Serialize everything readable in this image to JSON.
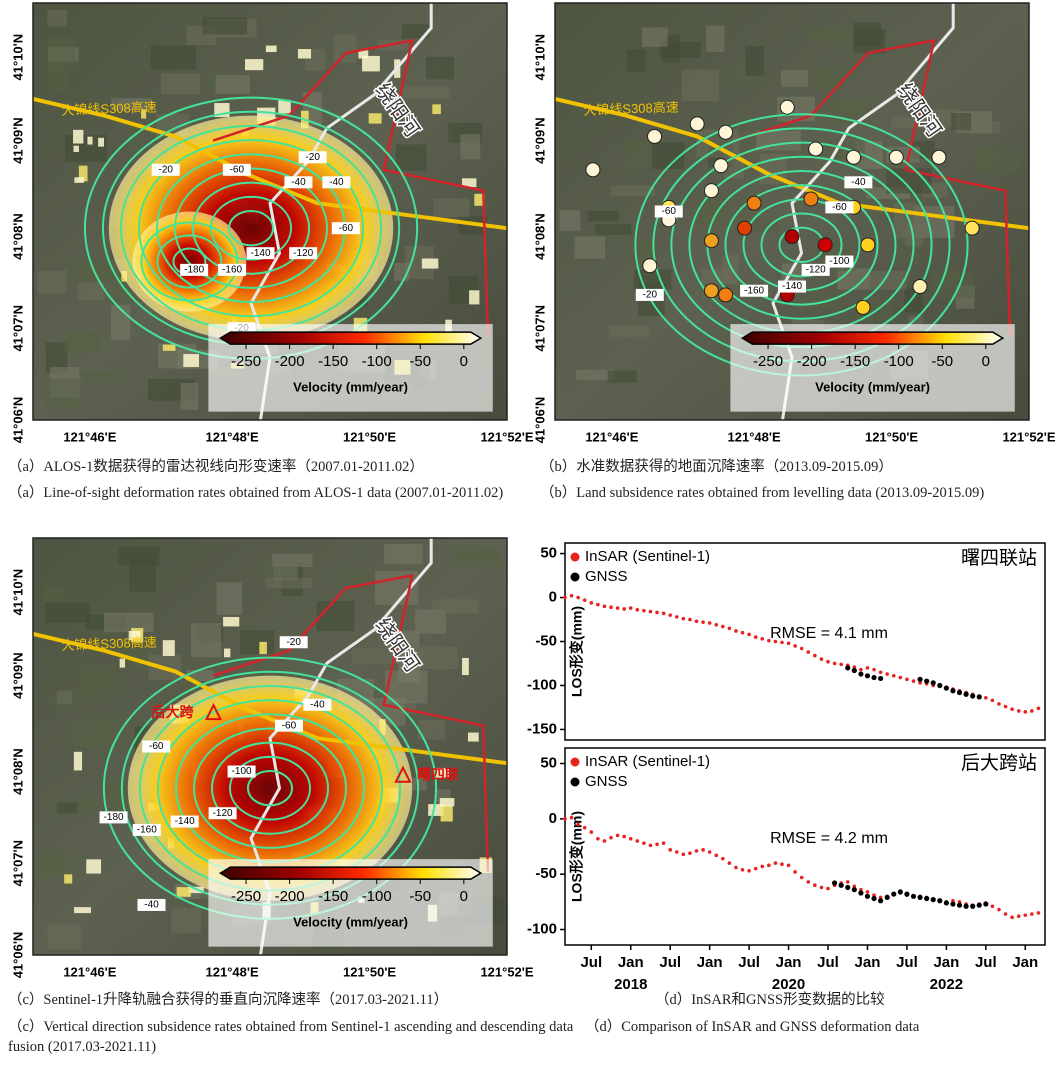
{
  "maps": [
    {
      "lat_ticks": [
        "41°10'N",
        "41°09'N",
        "41°08'N",
        "41°07'N",
        "41°06'N"
      ],
      "lon_ticks": [
        "121°46'E",
        "121°48'E",
        "121°50'E",
        "121°52'E"
      ],
      "places": [
        "大锦线S308高速",
        "绕阳河"
      ],
      "contour_labels": [
        -20,
        -60,
        -40,
        -20,
        -40,
        -140,
        -120,
        -60,
        -180,
        -160,
        -20
      ],
      "colorbar": {
        "ticks": [
          -250,
          -200,
          -150,
          -100,
          -50,
          0
        ],
        "lim": [
          -268,
          8
        ],
        "label": "Velocity (mm/year)"
      },
      "caption_zh": "（a）ALOS-1数据获得的雷达视线向形变速率（2007.01-2011.02）",
      "caption_en": "（a）Line-of-sight deformation rates obtained from ALOS-1 data (2007.01-2011.02)"
    },
    {
      "lat_ticks": [
        "41°10'N",
        "41°09'N",
        "41°08'N",
        "41°07'N",
        "41°06'N"
      ],
      "lon_ticks": [
        "121°46'E",
        "121°48'E",
        "121°50'E",
        "121°52'E"
      ],
      "places": [
        "大锦线S308高速",
        "绕阳河"
      ],
      "contour_labels": [
        -40,
        -60,
        -60,
        -100,
        -120,
        -140,
        -160,
        -20
      ],
      "colorbar": {
        "ticks": [
          -250,
          -200,
          -150,
          -100,
          -50,
          0
        ],
        "lim": [
          -268,
          8
        ],
        "label": "Velocity (mm/year)"
      },
      "caption_zh": "（b）水准数据获得的地面沉降速率（2013.09-2015.09）",
      "caption_en": "（b）Land subsidence rates obtained from levelling data (2013.09-2015.09)"
    },
    {
      "lat_ticks": [
        "41°10'N",
        "41°09'N",
        "41°08'N",
        "41°07'N",
        "41°06'N"
      ],
      "lon_ticks": [
        "121°46'E",
        "121°48'E",
        "121°50'E",
        "121°52'E"
      ],
      "places": [
        "大锦线S308高速",
        "绕阳河",
        "后大跨",
        "曙四联"
      ],
      "contour_labels": [
        -20,
        -40,
        -60,
        -60,
        -100,
        -120,
        -140,
        -160,
        -180,
        -40
      ],
      "colorbar": {
        "ticks": [
          -250,
          -200,
          -150,
          -100,
          -50,
          0
        ],
        "lim": [
          -268,
          8
        ],
        "label": "Velocity (mm/year)"
      },
      "caption_zh": "（c）Sentinel-1升降轨融合获得的垂直向沉降速率（2017.03-2021.11）",
      "caption_en": "（c）Vertical direction subsidence rates obtained from Sentinel-1 ascending and descending data fusion (2017.03-2021.11)"
    }
  ],
  "panel_d": {
    "caption_zh": "（d）InSAR和GNSS形变数据的比较",
    "caption_en": "（d）Comparison of InSAR and GNSS deformation data"
  },
  "chart_data": [
    {
      "type": "line",
      "title": "曙四联站",
      "annotation": "RMSE = 4.1 mm",
      "y_label": "LOS形变(mm)",
      "x": [
        "2017-03",
        "2017-04",
        "2017-05",
        "2017-06",
        "2017-07",
        "2017-08",
        "2017-09",
        "2017-10",
        "2017-11",
        "2017-12",
        "2018-01",
        "2018-02",
        "2018-03",
        "2018-04",
        "2018-05",
        "2018-06",
        "2018-07",
        "2018-08",
        "2018-09",
        "2018-10",
        "2018-11",
        "2018-12",
        "2019-01",
        "2019-02",
        "2019-03",
        "2019-04",
        "2019-05",
        "2019-06",
        "2019-07",
        "2019-08",
        "2019-09",
        "2019-10",
        "2019-11",
        "2019-12",
        "2020-01",
        "2020-02",
        "2020-03",
        "2020-04",
        "2020-05",
        "2020-06",
        "2020-07",
        "2020-08",
        "2020-09",
        "2020-10",
        "2020-11",
        "2020-12",
        "2021-01",
        "2021-02",
        "2021-03",
        "2021-04",
        "2021-05",
        "2021-06",
        "2021-07",
        "2021-08",
        "2021-09",
        "2021-10",
        "2021-11",
        "2021-12",
        "2022-01",
        "2022-02",
        "2022-03",
        "2022-04",
        "2022-05",
        "2022-06",
        "2022-07",
        "2022-08",
        "2022-09",
        "2022-10",
        "2022-11",
        "2022-12",
        "2023-01",
        "2023-02",
        "2023-03"
      ],
      "series": [
        {
          "name": "InSAR (Sentinel-1)",
          "color": "#e8231f",
          "values": [
            0,
            2,
            0,
            -3,
            -6,
            -8,
            -10,
            -11,
            -12,
            -13,
            -12,
            -14,
            -15,
            -16,
            -17,
            -18,
            -20,
            -22,
            -24,
            -25,
            -27,
            -28,
            -29,
            -31,
            -33,
            -35,
            -38,
            -40,
            -42,
            -45,
            -47,
            -49,
            -50,
            -51,
            -52,
            -55,
            -58,
            -62,
            -66,
            -70,
            -73,
            -75,
            -76,
            -77,
            -79,
            -82,
            -80,
            -82,
            -85,
            -87,
            -89,
            -91,
            -93,
            -95,
            -97,
            -98,
            -100,
            -101,
            -102,
            -104,
            -106,
            -108,
            -110,
            -112,
            -114,
            -117,
            -121,
            -124,
            -127,
            -129,
            -130,
            -129,
            -126
          ]
        },
        {
          "name": "GNSS",
          "color": "#000000",
          "values": [
            null,
            null,
            null,
            null,
            null,
            null,
            null,
            null,
            null,
            null,
            null,
            null,
            null,
            null,
            null,
            null,
            null,
            null,
            null,
            null,
            null,
            null,
            null,
            null,
            null,
            null,
            null,
            null,
            null,
            null,
            null,
            null,
            null,
            null,
            null,
            null,
            null,
            null,
            null,
            null,
            null,
            null,
            null,
            -80,
            -83,
            -87,
            -89,
            -91,
            -92,
            null,
            null,
            null,
            null,
            null,
            -93,
            -95,
            -97,
            -100,
            -103,
            -106,
            -108,
            -110,
            -112,
            -113,
            null,
            null,
            null,
            null,
            null,
            null,
            null,
            null,
            null
          ]
        }
      ],
      "xlim": [
        "2017-03",
        "2023-04"
      ],
      "ylim": [
        -162,
        62
      ],
      "yticks": [
        50,
        0,
        -50,
        -100,
        -150
      ]
    },
    {
      "type": "line",
      "title": "后大跨站",
      "annotation": "RMSE = 4.2 mm",
      "y_label": "LOS形变(mm)",
      "x": [
        "2017-03",
        "2017-04",
        "2017-05",
        "2017-06",
        "2017-07",
        "2017-08",
        "2017-09",
        "2017-10",
        "2017-11",
        "2017-12",
        "2018-01",
        "2018-02",
        "2018-03",
        "2018-04",
        "2018-05",
        "2018-06",
        "2018-07",
        "2018-08",
        "2018-09",
        "2018-10",
        "2018-11",
        "2018-12",
        "2019-01",
        "2019-02",
        "2019-03",
        "2019-04",
        "2019-05",
        "2019-06",
        "2019-07",
        "2019-08",
        "2019-09",
        "2019-10",
        "2019-11",
        "2019-12",
        "2020-01",
        "2020-02",
        "2020-03",
        "2020-04",
        "2020-05",
        "2020-06",
        "2020-07",
        "2020-08",
        "2020-09",
        "2020-10",
        "2020-11",
        "2020-12",
        "2021-01",
        "2021-02",
        "2021-03",
        "2021-04",
        "2021-05",
        "2021-06",
        "2021-07",
        "2021-08",
        "2021-09",
        "2021-10",
        "2021-11",
        "2021-12",
        "2022-01",
        "2022-02",
        "2022-03",
        "2022-04",
        "2022-05",
        "2022-06",
        "2022-07",
        "2022-08",
        "2022-09",
        "2022-10",
        "2022-11",
        "2022-12",
        "2023-01",
        "2023-02",
        "2023-03"
      ],
      "series": [
        {
          "name": "InSAR (Sentinel-1)",
          "color": "#e8231f",
          "values": [
            0,
            1,
            -5,
            -8,
            -12,
            -18,
            -20,
            -17,
            -15,
            -16,
            -18,
            -20,
            -22,
            -24,
            -23,
            -22,
            -28,
            -30,
            -32,
            -31,
            -29,
            -28,
            -30,
            -33,
            -36,
            -40,
            -44,
            -46,
            -47,
            -45,
            -43,
            -42,
            -40,
            -41,
            -42,
            -48,
            -53,
            -57,
            -60,
            -62,
            -63,
            -60,
            -58,
            -57,
            -61,
            -64,
            -66,
            -69,
            -71,
            -70,
            -68,
            -67,
            -69,
            -70,
            -70,
            -71,
            -73,
            -74,
            -75,
            -74,
            -75,
            -77,
            -78,
            -77,
            -76,
            -79,
            -82,
            -86,
            -89,
            -88,
            -87,
            -86,
            -85
          ]
        },
        {
          "name": "GNSS",
          "color": "#000000",
          "values": [
            null,
            null,
            null,
            null,
            null,
            null,
            null,
            null,
            null,
            null,
            null,
            null,
            null,
            null,
            null,
            null,
            null,
            null,
            null,
            null,
            null,
            null,
            null,
            null,
            null,
            null,
            null,
            null,
            null,
            null,
            null,
            null,
            null,
            null,
            null,
            null,
            null,
            null,
            null,
            null,
            null,
            -58,
            -60,
            -62,
            -64,
            -67,
            -70,
            -72,
            -74,
            -71,
            -68,
            -66,
            -68,
            -70,
            -71,
            -72,
            -73,
            -74,
            -76,
            -77,
            -78,
            -79,
            -79,
            -78,
            -77,
            null,
            null,
            null,
            null,
            null,
            null,
            null,
            null
          ]
        }
      ],
      "xlim": [
        "2017-03",
        "2023-04"
      ],
      "ylim": [
        -114,
        64
      ],
      "yticks": [
        50,
        0,
        -50,
        -100
      ],
      "xticks": [
        {
          "value": "2017-07",
          "label": "Jul"
        },
        {
          "value": "2018-01",
          "label": "Jan"
        },
        {
          "value": "2018-07",
          "label": "Jul"
        },
        {
          "value": "2019-01",
          "label": "Jan"
        },
        {
          "value": "2019-07",
          "label": "Jul"
        },
        {
          "value": "2020-01",
          "label": "Jan"
        },
        {
          "value": "2020-07",
          "label": "Jul"
        },
        {
          "value": "2021-01",
          "label": "Jan"
        },
        {
          "value": "2021-07",
          "label": "Jul"
        },
        {
          "value": "2022-01",
          "label": "Jan"
        },
        {
          "value": "2022-07",
          "label": "Jul"
        },
        {
          "value": "2023-01",
          "label": "Jan"
        }
      ],
      "year_labels": [
        {
          "value": "2018-01",
          "label": "2018"
        },
        {
          "value": "2020-01",
          "label": "2020"
        },
        {
          "value": "2022-01",
          "label": "2022"
        }
      ]
    }
  ]
}
